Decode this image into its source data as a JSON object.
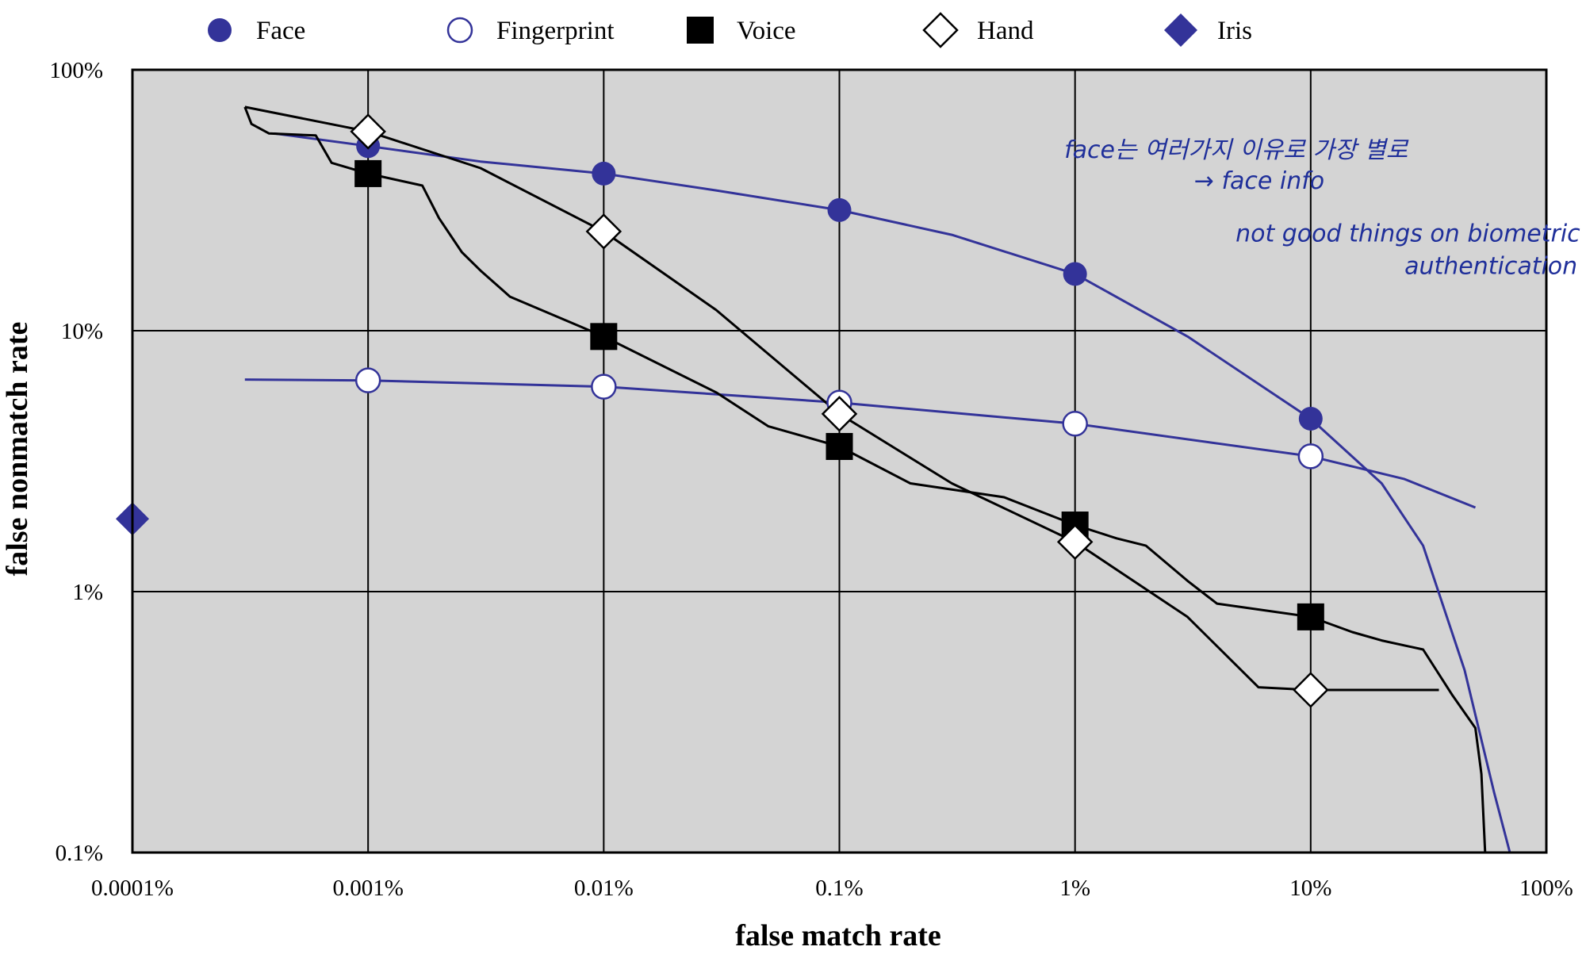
{
  "chart_data": {
    "type": "line",
    "title": "",
    "xlabel": "false match rate",
    "ylabel": "false nonmatch rate",
    "x_scale": "log",
    "y_scale": "log",
    "xlim": [
      0.0001,
      100
    ],
    "ylim": [
      0.1,
      100
    ],
    "grid": true,
    "legend": "top",
    "x_ticks": [
      {
        "value": 0.0001,
        "label": "0.0001%"
      },
      {
        "value": 0.001,
        "label": "0.001%"
      },
      {
        "value": 0.01,
        "label": "0.01%"
      },
      {
        "value": 0.1,
        "label": "0.1%"
      },
      {
        "value": 1,
        "label": "1%"
      },
      {
        "value": 10,
        "label": "10%"
      },
      {
        "value": 100,
        "label": "100%"
      }
    ],
    "y_ticks": [
      {
        "value": 0.1,
        "label": "0.1%"
      },
      {
        "value": 1,
        "label": "1%"
      },
      {
        "value": 10,
        "label": "10%"
      },
      {
        "value": 100,
        "label": "100%"
      }
    ],
    "series": [
      {
        "name": "Face",
        "marker": "filled-circle",
        "color": "#333399",
        "curve": [
          [
            0.0004,
            57
          ],
          [
            0.001,
            51
          ],
          [
            0.003,
            44.5
          ],
          [
            0.01,
            40
          ],
          [
            0.03,
            34.5
          ],
          [
            0.1,
            29
          ],
          [
            0.3,
            23.3
          ],
          [
            1,
            16.5
          ],
          [
            3,
            9.5
          ],
          [
            10,
            4.6
          ],
          [
            20,
            2.6
          ],
          [
            30,
            1.5
          ],
          [
            45,
            0.5
          ],
          [
            60,
            0.17
          ],
          [
            70,
            0.1
          ]
        ],
        "markers": [
          [
            0.001,
            51
          ],
          [
            0.01,
            40
          ],
          [
            0.1,
            29
          ],
          [
            1,
            16.5
          ],
          [
            10,
            4.6
          ]
        ]
      },
      {
        "name": "Fingerprint",
        "marker": "open-circle",
        "color": "#333399",
        "curve": [
          [
            0.0003,
            6.5
          ],
          [
            0.001,
            6.45
          ],
          [
            0.01,
            6.1
          ],
          [
            0.1,
            5.3
          ],
          [
            1,
            4.4
          ],
          [
            10,
            3.3
          ],
          [
            25,
            2.7
          ],
          [
            50,
            2.1
          ]
        ],
        "markers": [
          [
            0.001,
            6.45
          ],
          [
            0.01,
            6.1
          ],
          [
            0.1,
            5.3
          ],
          [
            1,
            4.4
          ],
          [
            10,
            3.3
          ]
        ]
      },
      {
        "name": "Voice",
        "marker": "filled-square",
        "color": "#000000",
        "curve": [
          [
            0.0003,
            72
          ],
          [
            0.00032,
            62
          ],
          [
            0.00038,
            57
          ],
          [
            0.0006,
            56
          ],
          [
            0.0007,
            44
          ],
          [
            0.001,
            40
          ],
          [
            0.0017,
            36
          ],
          [
            0.002,
            27
          ],
          [
            0.0025,
            20
          ],
          [
            0.003,
            17
          ],
          [
            0.004,
            13.5
          ],
          [
            0.01,
            9.5
          ],
          [
            0.03,
            5.8
          ],
          [
            0.05,
            4.3
          ],
          [
            0.1,
            3.6
          ],
          [
            0.2,
            2.6
          ],
          [
            0.5,
            2.3
          ],
          [
            1,
            1.8
          ],
          [
            1.5,
            1.6
          ],
          [
            2,
            1.5
          ],
          [
            3,
            1.1
          ],
          [
            4,
            0.9
          ],
          [
            10,
            0.8
          ],
          [
            15,
            0.7
          ],
          [
            20,
            0.65
          ],
          [
            30,
            0.6
          ],
          [
            40,
            0.4
          ],
          [
            50,
            0.3
          ],
          [
            53,
            0.2
          ],
          [
            55,
            0.1
          ]
        ],
        "markers": [
          [
            0.001,
            40
          ],
          [
            0.01,
            9.5
          ],
          [
            0.1,
            3.6
          ],
          [
            1,
            1.8
          ],
          [
            10,
            0.8
          ]
        ]
      },
      {
        "name": "Hand",
        "marker": "open-diamond",
        "color": "#000000",
        "curve": [
          [
            0.0003,
            72
          ],
          [
            0.001,
            58
          ],
          [
            0.003,
            42
          ],
          [
            0.01,
            24
          ],
          [
            0.03,
            12
          ],
          [
            0.1,
            4.8
          ],
          [
            0.3,
            2.6
          ],
          [
            1,
            1.55
          ],
          [
            3,
            0.8
          ],
          [
            6,
            0.43
          ],
          [
            10,
            0.42
          ],
          [
            35,
            0.42
          ]
        ],
        "markers": [
          [
            0.001,
            58
          ],
          [
            0.01,
            24
          ],
          [
            0.1,
            4.8
          ],
          [
            1,
            1.55
          ],
          [
            10,
            0.42
          ]
        ]
      },
      {
        "name": "Iris",
        "marker": "filled-diamond",
        "color": "#333399",
        "curve": [],
        "markers": [
          [
            0.0001,
            1.9
          ]
        ]
      }
    ],
    "annotations": [
      {
        "text": "face는 여러가지 이유로 가장 별로",
        "x": 0.9,
        "y": 46
      },
      {
        "text": "→  face info",
        "x": 3.2,
        "y": 35
      },
      {
        "text": "not good things on biometric",
        "x": 4.8,
        "y": 22
      },
      {
        "text": "authentication",
        "x": 25,
        "y": 16.5
      }
    ]
  }
}
